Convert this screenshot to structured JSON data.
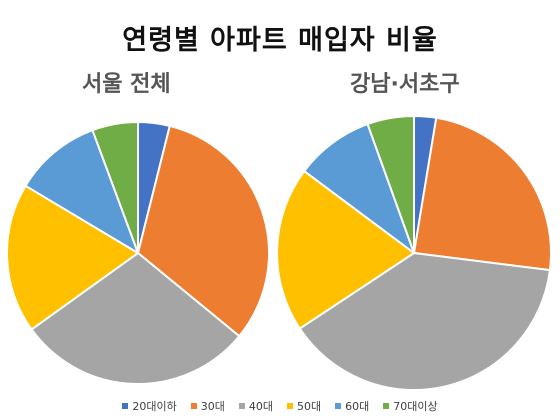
{
  "title": "연령별 아파트 매입자 비율",
  "chart_data": [
    {
      "type": "pie",
      "title": "서울 전체",
      "categories": [
        "20대이하",
        "30대",
        "40대",
        "50대",
        "60대",
        "70대이상"
      ],
      "values": [
        3.8,
        31.2,
        28.4,
        18.0,
        10.5,
        5.5
      ],
      "unit": "%"
    },
    {
      "type": "pie",
      "title": "강남·서초구",
      "categories": [
        "20대이하",
        "30대",
        "40대",
        "50대",
        "60대",
        "70대이상"
      ],
      "values": [
        2.6,
        24.4,
        38.7,
        19.5,
        9.3,
        5.5
      ],
      "unit": "%"
    }
  ],
  "colors": [
    "#4472C4",
    "#ED7D31",
    "#A5A5A5",
    "#FFC000",
    "#5B9BD5",
    "#70AD47"
  ],
  "legend": {
    "placement": "bottom",
    "items": [
      "20대이하",
      "30대",
      "40대",
      "50대",
      "60대",
      "70대이상"
    ]
  }
}
